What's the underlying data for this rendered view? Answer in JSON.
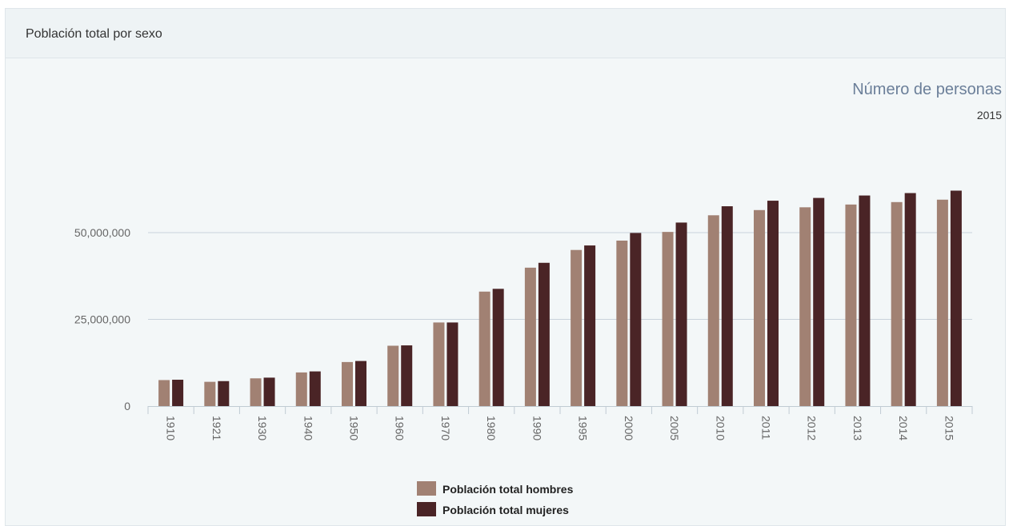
{
  "panel": {
    "title": "Población total por sexo"
  },
  "chart_data": {
    "type": "bar",
    "title": "Número de personas",
    "subtitle": "2015",
    "xlabel": "",
    "ylabel": "",
    "ylim": [
      0,
      60000000
    ],
    "yticks": [
      0,
      25000000,
      50000000
    ],
    "ytick_labels": [
      "0",
      "25,000,000",
      "50,000,000"
    ],
    "grid": true,
    "legend_position": "bottom-center",
    "categories": [
      "1910",
      "1921",
      "1930",
      "1940",
      "1950",
      "1960",
      "1970",
      "1980",
      "1990",
      "1995",
      "2000",
      "2005",
      "2010",
      "2011",
      "2012",
      "2013",
      "2014",
      "2015"
    ],
    "series": [
      {
        "name": "Población total hombres",
        "color": "#a18173",
        "values": [
          7500000,
          7000000,
          8000000,
          9700000,
          12700000,
          17400000,
          24100000,
          33000000,
          39900000,
          45000000,
          47700000,
          50200000,
          55000000,
          56500000,
          57300000,
          58100000,
          58800000,
          59500000
        ]
      },
      {
        "name": "Población total mujeres",
        "color": "#4a2426",
        "values": [
          7600000,
          7200000,
          8200000,
          10000000,
          13000000,
          17500000,
          24100000,
          33800000,
          41300000,
          46300000,
          49900000,
          52900000,
          57600000,
          59200000,
          60000000,
          60700000,
          61400000,
          62100000
        ]
      }
    ]
  }
}
